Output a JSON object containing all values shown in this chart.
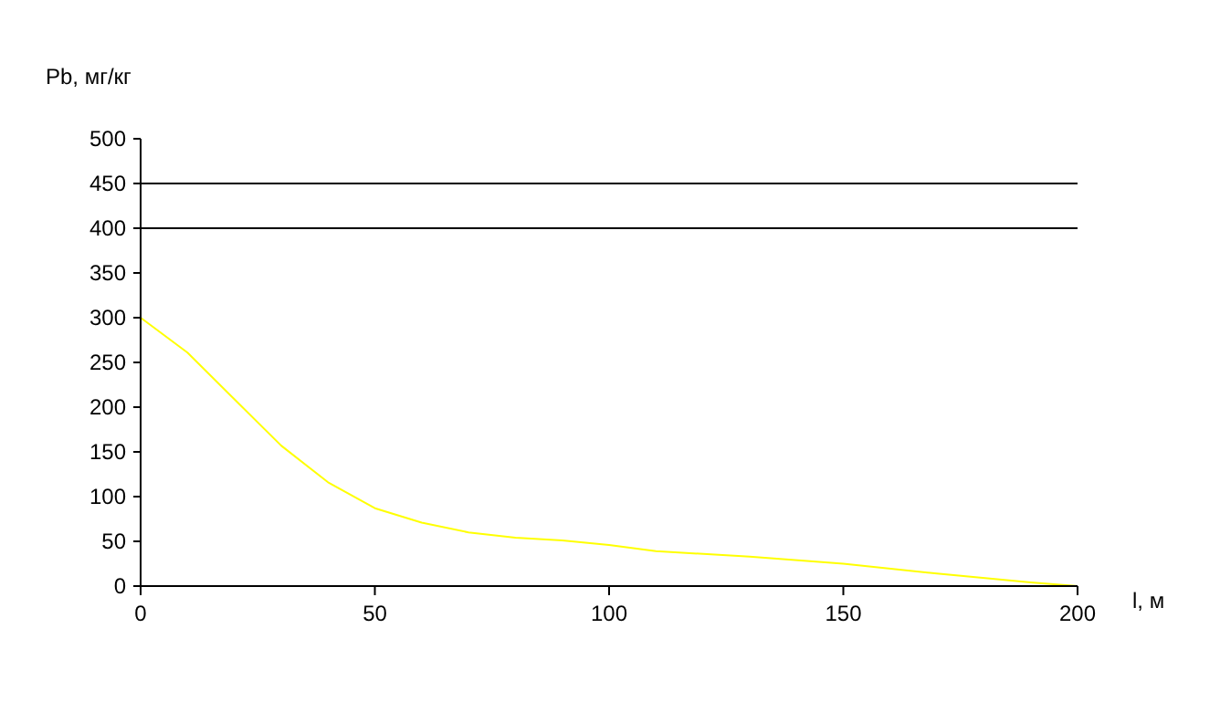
{
  "chart_data": {
    "type": "line",
    "xlabel": "l, м",
    "ylabel": "Pb, мг/кг",
    "x": [
      0,
      10,
      20,
      30,
      40,
      50,
      60,
      70,
      80,
      90,
      100,
      110,
      130,
      150,
      170,
      190,
      200
    ],
    "series": [
      {
        "color": "#ffff00",
        "values": [
          300,
          261,
          209,
          157,
          116,
          87,
          71,
          60,
          54,
          51,
          46,
          39,
          33,
          25,
          14,
          4,
          0
        ]
      }
    ],
    "xlim": [
      0,
      200
    ],
    "xticks": [
      0,
      50,
      100,
      150,
      200
    ],
    "ylim": [
      0,
      500
    ],
    "yticks": [
      0,
      50,
      100,
      150,
      200,
      250,
      300,
      350,
      400,
      450,
      500
    ],
    "ref_lines": [
      {
        "axis": "y",
        "value": 450,
        "color": "#000000"
      },
      {
        "axis": "y",
        "value": 400,
        "color": "#000000"
      }
    ],
    "grid": false,
    "marker": "none",
    "line_style": "solid"
  }
}
